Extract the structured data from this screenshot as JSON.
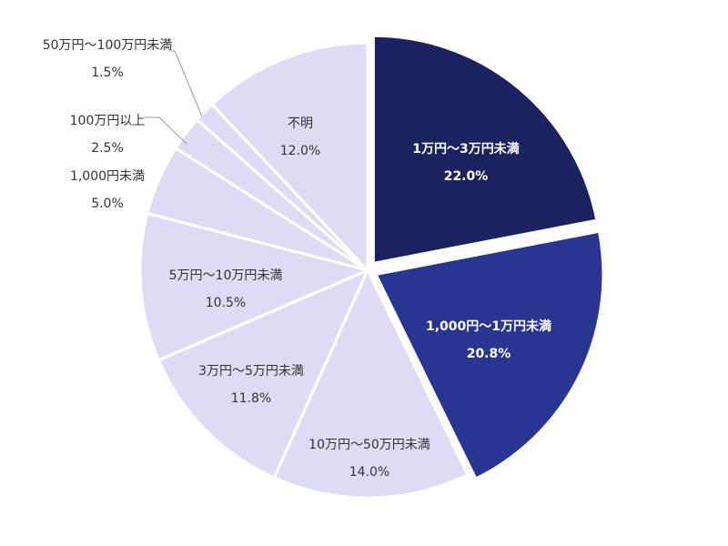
{
  "chart_data": {
    "type": "pie",
    "unit": "%",
    "slices": [
      {
        "label": "1万円～3万円未満",
        "value": 22.0,
        "display": "22.0%",
        "color": "#1b2260",
        "text": "light",
        "exploded": true
      },
      {
        "label": "1,000円～1万円未満",
        "value": 20.8,
        "display": "20.8%",
        "color": "#283593",
        "text": "light",
        "exploded": true
      },
      {
        "label": "10万円～50万円未満",
        "value": 14.0,
        "display": "14.0%",
        "color": "#dcdcf4",
        "text": "dark"
      },
      {
        "label": "3万円～5万円未満",
        "value": 11.8,
        "display": "11.8%",
        "color": "#dcdcf4",
        "text": "dark"
      },
      {
        "label": "5万円～10万円未満",
        "value": 10.5,
        "display": "10.5%",
        "color": "#dcdcf4",
        "text": "dark"
      },
      {
        "label": "1,000円未満",
        "value": 5.0,
        "display": "5.0%",
        "color": "#dcdcf4",
        "text": "dark"
      },
      {
        "label": "100万円以上",
        "value": 2.5,
        "display": "2.5%",
        "color": "#dcdcf4",
        "text": "dark"
      },
      {
        "label": "50万円～100万円未満",
        "value": 1.5,
        "display": "1.5%",
        "color": "#dcdcf4",
        "text": "dark"
      },
      {
        "label": "不明",
        "value": 12.0,
        "display": "12.0%",
        "color": "#dcdcf4",
        "text": "dark"
      }
    ]
  }
}
